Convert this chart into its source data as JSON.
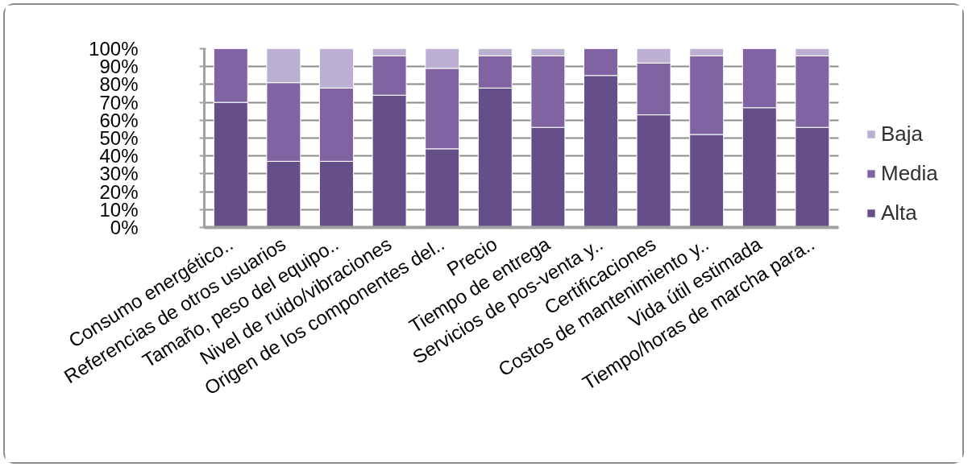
{
  "chart_data": {
    "type": "bar",
    "stacked": true,
    "categories": [
      "Consumo energético..",
      "Referencias de otros usuarios",
      "Tamaño, peso del equipo..",
      "Nivel de ruido/vibraciones",
      "Origen de los componentes del..",
      "Precio",
      "Tiempo de entrega",
      "Servicios de pos-venta y..",
      "Certificaciones",
      "Costos de mantenimiento y..",
      "Vida útil estimada",
      "Tiempo/horas de marcha para.."
    ],
    "series": [
      {
        "name": "Alta",
        "color": "#654f88",
        "values": [
          70,
          37,
          37,
          74,
          44,
          78,
          56,
          85,
          63,
          52,
          67,
          56
        ]
      },
      {
        "name": "Media",
        "color": "#8064a2",
        "values": [
          30,
          44,
          41,
          22,
          45,
          18,
          40,
          15,
          29,
          44,
          33,
          40
        ]
      },
      {
        "name": "Baja",
        "color": "#bbb0d1",
        "values": [
          0,
          19,
          22,
          4,
          11,
          4,
          4,
          0,
          8,
          4,
          0,
          4
        ]
      }
    ],
    "ylim": [
      0,
      100
    ],
    "yticks": [
      {
        "value": 0,
        "label": "0%"
      },
      {
        "value": 10,
        "label": "10%"
      },
      {
        "value": 20,
        "label": "20%"
      },
      {
        "value": 30,
        "label": "30%"
      },
      {
        "value": 40,
        "label": "40%"
      },
      {
        "value": 50,
        "label": "50%"
      },
      {
        "value": 60,
        "label": "60%"
      },
      {
        "value": 70,
        "label": "70%"
      },
      {
        "value": 80,
        "label": "80%"
      },
      {
        "value": 90,
        "label": "90%"
      },
      {
        "value": 100,
        "label": "100%"
      }
    ],
    "grid": "y",
    "legend": "right"
  }
}
